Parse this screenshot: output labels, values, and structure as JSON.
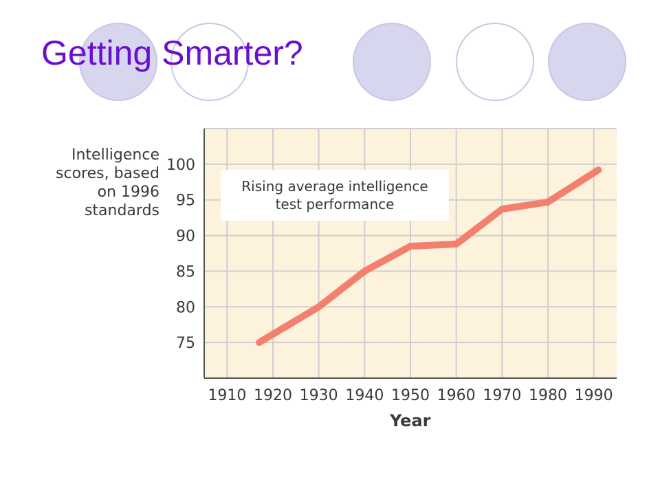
{
  "slide": {
    "title": "Getting Smarter?",
    "title_color": "#6a0fd0",
    "deco_colors": {
      "fill": "#d6d6ee",
      "outline": "#c7c7e6"
    }
  },
  "chart_data": {
    "type": "line",
    "title": "",
    "annotation": "Rising average intelligence\ntest performance",
    "xlabel": "Year",
    "ylabel": "Intelligence\nscores, based\non 1996\nstandards",
    "x_ticks": [
      "1910",
      "1920",
      "1930",
      "1940",
      "1950",
      "1960",
      "1970",
      "1980",
      "1990"
    ],
    "y_ticks": [
      "75",
      "80",
      "85",
      "90",
      "95",
      "100"
    ],
    "xlim": [
      1905,
      1995
    ],
    "ylim": [
      70,
      105
    ],
    "grid": true,
    "series": [
      {
        "x": [
          1917,
          1930,
          1940,
          1950,
          1960,
          1970,
          1980,
          1991
        ],
        "y": [
          75,
          80,
          85,
          88.5,
          88.8,
          93.7,
          94.7,
          99.2
        ]
      }
    ],
    "colors": {
      "line": "#f3806f",
      "plot_bg": "#fdf2dc",
      "grid": "#cfcfcf",
      "axis": "#555555",
      "text": "#3a3a3a"
    }
  }
}
